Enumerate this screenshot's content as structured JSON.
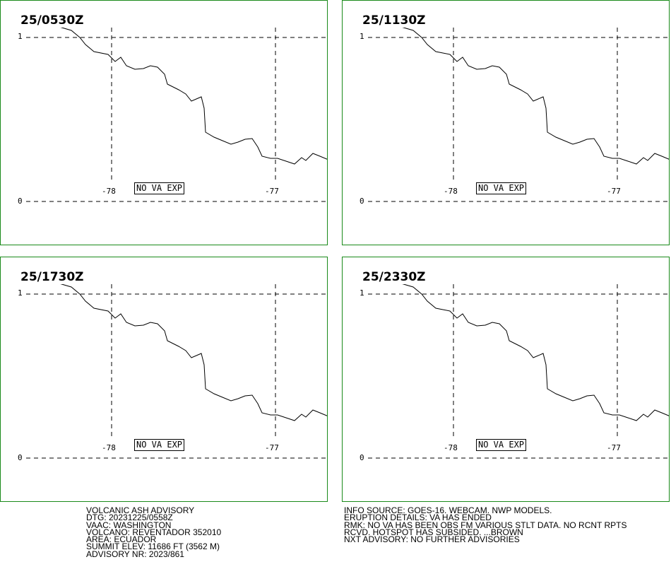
{
  "panels": [
    {
      "time": "25/0530Z",
      "label": "NO VA EXP"
    },
    {
      "time": "25/1130Z",
      "label": "NO VA EXP"
    },
    {
      "time": "25/1730Z",
      "label": "NO VA EXP"
    },
    {
      "time": "25/2330Z",
      "label": "NO VA EXP"
    }
  ],
  "axes": {
    "lat_top": "1",
    "lat_bottom": "0",
    "lon_left": "-78",
    "lon_right": "-77"
  },
  "advisory_left": [
    "VOLCANIC ASH ADVISORY",
    "DTG: 20231225/0558Z",
    "VAAC: WASHINGTON",
    "VOLCANO: REVENTADOR 352010",
    "AREA: ECUADOR",
    "SUMMIT ELEV: 11686 FT (3562 M)",
    "ADVISORY NR: 2023/861"
  ],
  "advisory_right": [
    "INFO SOURCE: GOES-16. WEBCAM. NWP MODELS.",
    "ERUPTION DETAILS: VA HAS ENDED",
    "RMK: NO VA HAS BEEN OBS FM VARIOUS STLT DATA. NO RCNT RPTS",
    "RCVD. HOTSPOT HAS SUBSIDED. ...BROWN",
    "NXT ADVISORY: NO FURTHER ADVISORIES"
  ],
  "colors": {
    "frame": "#1a8a1a",
    "lines": "#000000"
  }
}
